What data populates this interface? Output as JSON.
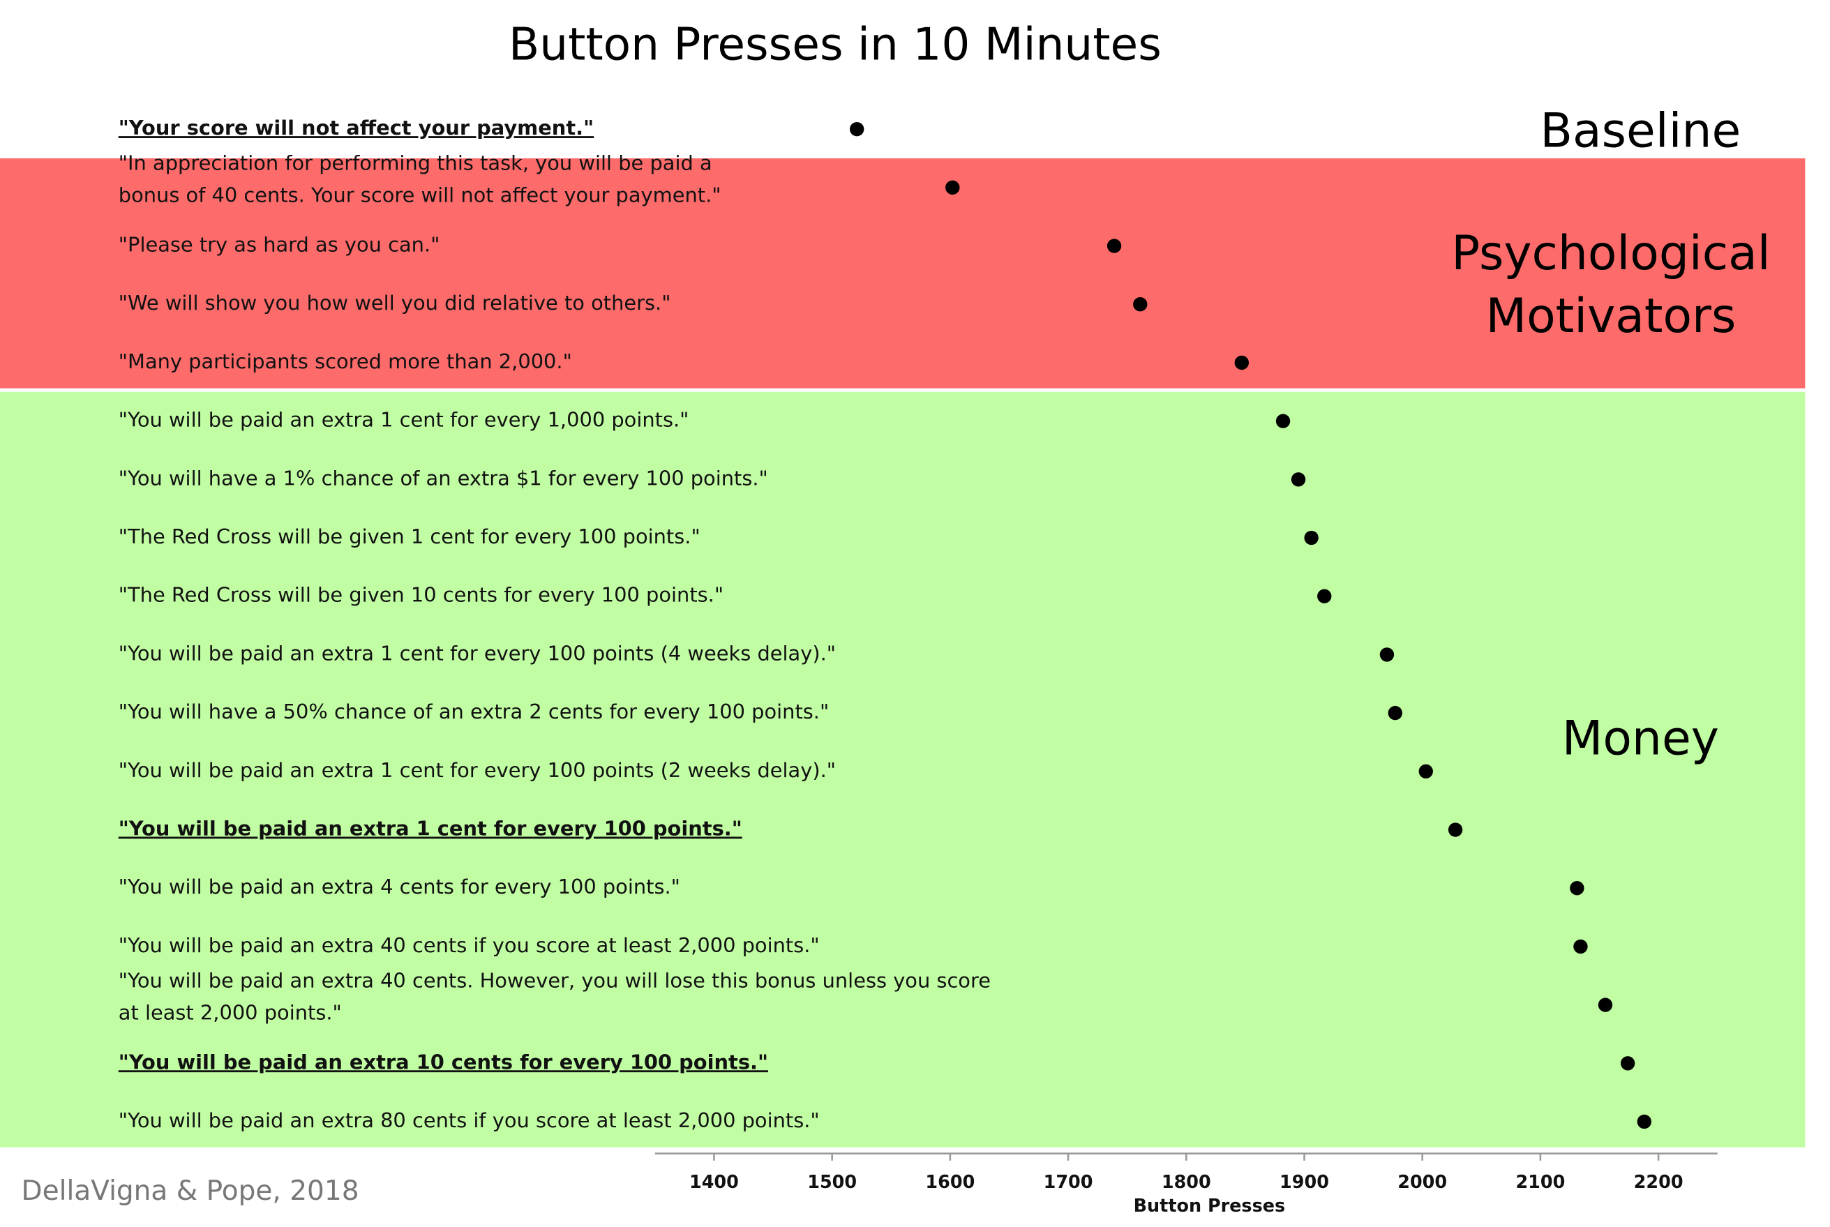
{
  "chart_data": {
    "type": "dot",
    "title": "Button Presses in 10 Minutes",
    "source": "DellaVigna & Pope, 2018",
    "x_label": "Button Presses",
    "categories": [
      "\"Your score will not affect your payment.\"",
      [
        "\"In appreciation for performing this task, you will be paid a",
        "bonus of 40 cents. Your score will not affect your payment.\""
      ],
      "\"Please try as hard as you can.\"",
      "\"We will show you how well you did relative to others.\"",
      "\"Many participants scored more than 2,000.\"",
      "\"You will be paid an extra 1 cent for every 1,000 points.\"",
      "\"You will have a 1% chance of an extra $1 for every 100 points.\"",
      "\"The Red Cross will be given 1 cent for every 100 points.\"",
      "\"The Red Cross will be given 10 cents for every 100 points.\"",
      "\"You will  be paid an extra 1 cent for every 100 points (4 weeks delay).\"",
      "\"You will have a 50% chance of an extra 2 cents for every 100 points.\"",
      "\"You will  be paid an extra 1 cent for every 100 points (2 weeks delay).\"",
      "\"You will  be paid an extra 1 cent for every 100 points.\"",
      "\"You will  be paid an extra 4 cents for every 100 points.\"",
      "\"You will be paid an extra 40 cents if you score at least 2,000 points.\"",
      [
        "\"You will be paid an extra 40 cents. However, you will lose this bonus unless you score",
        "at least 2,000 points.\""
      ],
      "\"You will be paid an extra 10 cents for every 100 points.\"",
      "\"You will be paid an extra 80 cents if you score at least 2,000 points.\""
    ],
    "values": [
      1521,
      1602,
      1739,
      1761,
      1847,
      1882,
      1895,
      1906,
      1917,
      1970,
      1977,
      2003,
      2028,
      2131,
      2134,
      2155,
      2174,
      2188
    ],
    "emphasis": [
      0,
      12,
      16
    ],
    "color": "#000000",
    "xlim": [
      1350,
      2250
    ],
    "xticks": [
      1400,
      1500,
      1600,
      1700,
      1800,
      1900,
      2000,
      2100,
      2200
    ],
    "groups": [
      {
        "name": [
          "Baseline"
        ],
        "rows": [
          0,
          0
        ]
      },
      {
        "name": [
          "Psychological",
          "Motivators"
        ],
        "rows": [
          1,
          4
        ],
        "color": "#fe6b6b"
      },
      {
        "name": [
          "Money"
        ],
        "rows": [
          5,
          17
        ],
        "color": "#c1fea3"
      }
    ]
  }
}
